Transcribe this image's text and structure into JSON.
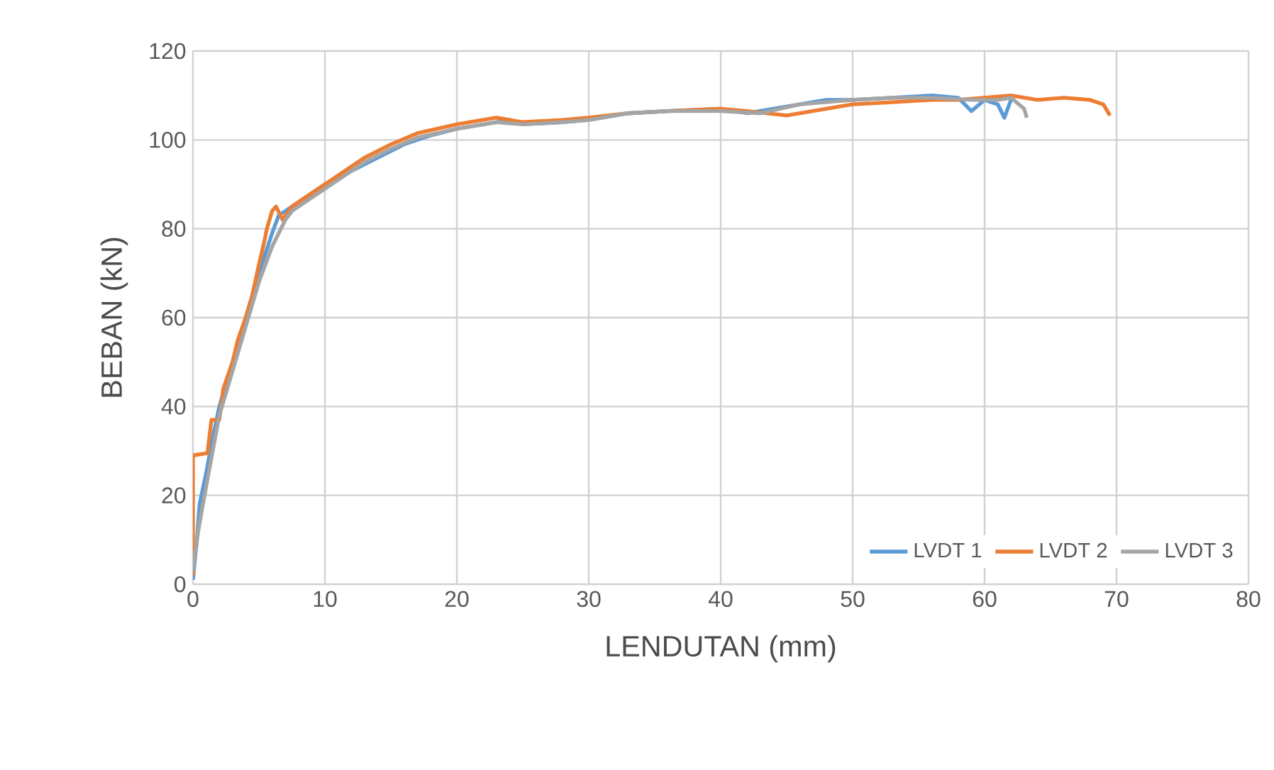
{
  "chart_data": {
    "type": "line",
    "xlabel": "LENDUTAN (mm)",
    "ylabel": "BEBAN (kN)",
    "xlim": [
      0,
      80
    ],
    "ylim": [
      0,
      120
    ],
    "xticks": [
      0,
      10,
      20,
      30,
      40,
      50,
      60,
      70,
      80
    ],
    "yticks": [
      0,
      20,
      40,
      60,
      80,
      100,
      120
    ],
    "grid": true,
    "legend": "bottom right",
    "marker": "none",
    "line_style": "solid",
    "series": [
      {
        "name": "LVDT 1",
        "color": "#5b9bd5",
        "x": [
          0,
          0.3,
          0.5,
          1,
          1.5,
          2,
          3,
          4,
          5,
          6,
          6.5,
          7,
          8,
          10,
          12,
          14,
          16,
          18,
          20,
          22,
          24,
          25,
          28,
          30,
          33,
          36,
          40,
          42,
          45,
          48,
          50,
          53,
          56,
          58,
          59,
          60,
          61,
          61.5,
          62
        ],
        "values": [
          1,
          10,
          18,
          25,
          33,
          40,
          50,
          60,
          70,
          79,
          83,
          84,
          86,
          90,
          93,
          96,
          99,
          101,
          102.5,
          103.5,
          104.5,
          103.5,
          104,
          104.5,
          106,
          106.5,
          107,
          106,
          107.5,
          109,
          109,
          109.5,
          110,
          109.5,
          106.5,
          109,
          108,
          105,
          109
        ]
      },
      {
        "name": "LVDT 2",
        "color": "#ed7d31",
        "x": [
          0,
          0,
          1.1,
          1.4,
          2,
          2.3,
          3,
          3.4,
          4,
          4.5,
          5,
          5.4,
          5.6,
          6,
          6.3,
          6.8,
          7.5,
          9,
          11,
          13,
          15,
          17,
          20,
          23,
          25,
          28,
          30,
          33,
          36,
          40,
          42,
          45,
          48,
          50,
          53,
          56,
          58,
          60,
          62,
          64,
          66,
          68,
          69,
          69.5
        ],
        "values": [
          2,
          29,
          29.5,
          37,
          37,
          44,
          50,
          55,
          60,
          65,
          72,
          77,
          80,
          84,
          85,
          82,
          85,
          88,
          92,
          96,
          99,
          101.5,
          103.5,
          105,
          104,
          104.5,
          105,
          106,
          106.5,
          107,
          106.5,
          105.5,
          107,
          108,
          108.5,
          109,
          109,
          109.5,
          110,
          109,
          109.5,
          109,
          108,
          105.5
        ]
      },
      {
        "name": "LVDT 3",
        "color": "#a5a5a5",
        "x": [
          0,
          0.4,
          1,
          1.5,
          2,
          3,
          4,
          5,
          6,
          7,
          7.5,
          9,
          11,
          13,
          15,
          17,
          20,
          23,
          25,
          28,
          30,
          33,
          36,
          40,
          43,
          46,
          50,
          53,
          56,
          59,
          61,
          62,
          63,
          63.2
        ],
        "values": [
          3,
          12,
          22,
          30,
          38,
          48,
          58,
          68,
          76,
          82,
          84,
          87,
          91,
          95,
          98,
          100.5,
          102.5,
          104,
          103.5,
          104,
          104.5,
          106,
          106.5,
          106.5,
          106,
          108,
          109,
          109.5,
          109.5,
          109,
          109,
          109.5,
          107,
          105
        ]
      }
    ]
  }
}
